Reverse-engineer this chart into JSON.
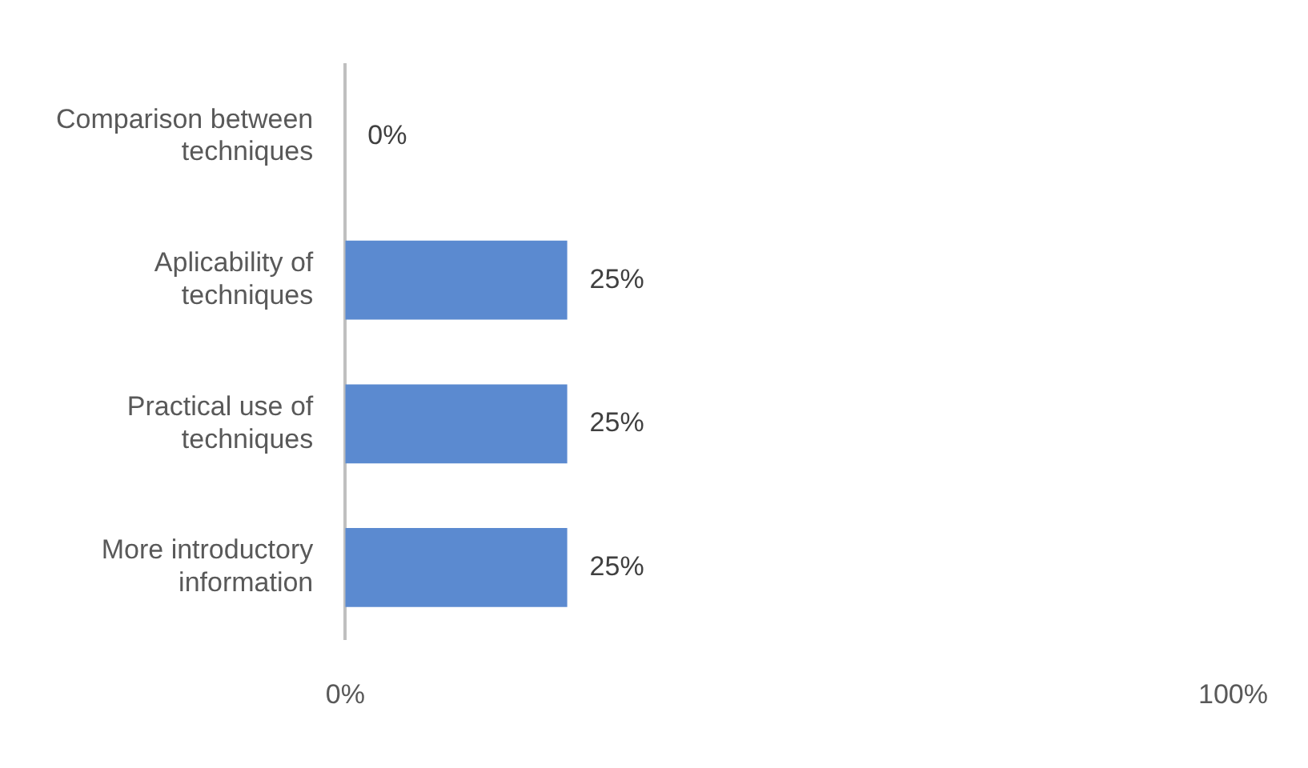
{
  "chart_data": {
    "type": "bar",
    "orientation": "horizontal",
    "categories": [
      "Comparison between techniques",
      "Aplicability of techniques",
      "Practical use of techniques",
      "More introductory information"
    ],
    "values": [
      0,
      25,
      25,
      25
    ],
    "color": "#5b8ad0",
    "value_labels": [
      "0%",
      "25%",
      "25%",
      "25%"
    ],
    "xlim": [
      0,
      100
    ],
    "xticks": [
      {
        "value": 0,
        "label": "0%"
      },
      {
        "value": 100,
        "label": "100%"
      }
    ],
    "grid": false,
    "legend": false
  }
}
